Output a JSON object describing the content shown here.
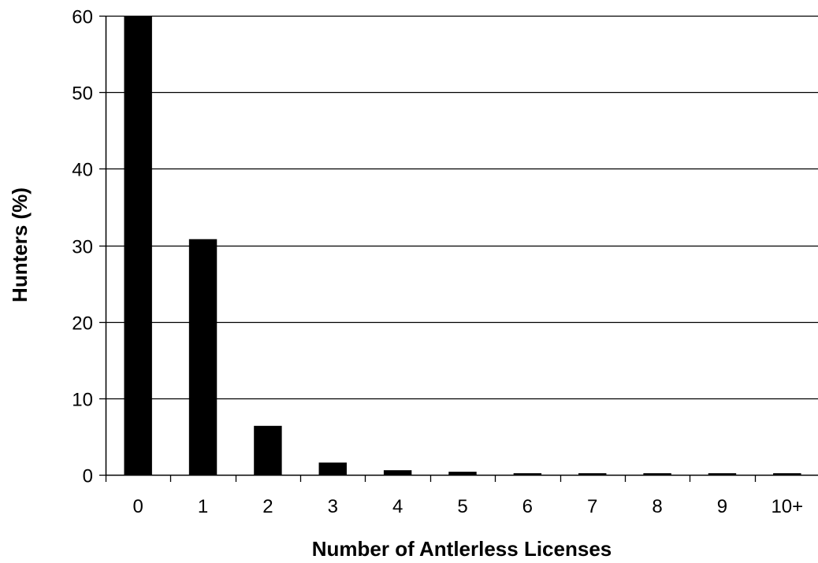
{
  "chart_data": {
    "type": "bar",
    "title": "",
    "xlabel": "Number of Antlerless Licenses",
    "ylabel": "Hunters (%)",
    "categories": [
      "0",
      "1",
      "2",
      "3",
      "4",
      "5",
      "6",
      "7",
      "8",
      "9",
      "10+"
    ],
    "values": [
      60,
      30.8,
      6.4,
      1.6,
      0.6,
      0.4,
      0.15,
      0.15,
      0.15,
      0.15,
      0.15
    ],
    "ylim": [
      0,
      60
    ],
    "yticks": [
      0,
      10,
      20,
      30,
      40,
      50,
      60
    ],
    "grid": true,
    "bar_color": "#000000",
    "grid_color": "#000000"
  }
}
